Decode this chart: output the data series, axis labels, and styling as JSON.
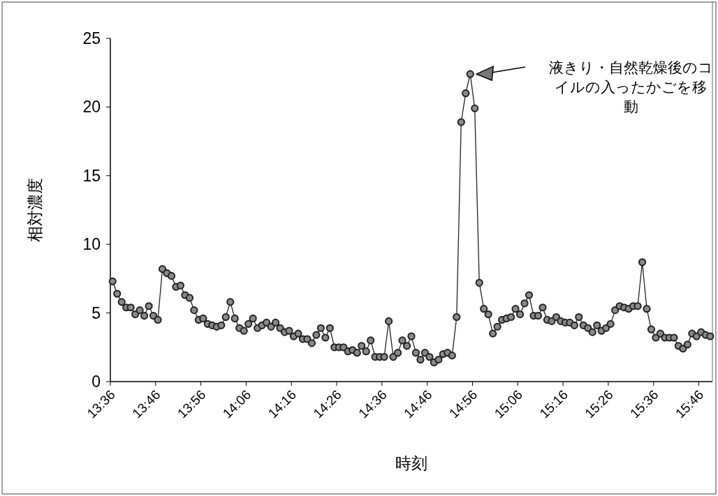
{
  "chart_data": {
    "type": "line",
    "xlabel": "時刻",
    "ylabel": "相対濃度",
    "categories": [
      "13:36",
      null,
      null,
      null,
      null,
      null,
      null,
      null,
      null,
      null,
      "13:46",
      null,
      null,
      null,
      null,
      null,
      null,
      null,
      null,
      null,
      "13:56",
      null,
      null,
      null,
      null,
      null,
      null,
      null,
      null,
      null,
      "14:06",
      null,
      null,
      null,
      null,
      null,
      null,
      null,
      null,
      null,
      "14:16",
      null,
      null,
      null,
      null,
      null,
      null,
      null,
      null,
      null,
      "14:26",
      null,
      null,
      null,
      null,
      null,
      null,
      null,
      null,
      null,
      "14:36",
      null,
      null,
      null,
      null,
      null,
      null,
      null,
      null,
      null,
      "14:46",
      null,
      null,
      null,
      null,
      null,
      null,
      null,
      null,
      null,
      "14:56",
      null,
      null,
      null,
      null,
      null,
      null,
      null,
      null,
      null,
      "15:06",
      null,
      null,
      null,
      null,
      null,
      null,
      null,
      null,
      null,
      "15:16",
      null,
      null,
      null,
      null,
      null,
      null,
      null,
      null,
      null,
      "15:26",
      null,
      null,
      null,
      null,
      null,
      null,
      null,
      null,
      null,
      "15:36",
      null,
      null,
      null,
      null,
      null,
      null,
      null,
      null,
      null,
      "15:46",
      null,
      null
    ],
    "series": [
      {
        "color": "#222222",
        "values": [
          7.3,
          6.4,
          5.8,
          5.4,
          5.4,
          4.9,
          5.2,
          4.8,
          5.5,
          4.8,
          4.5,
          8.2,
          7.9,
          7.7,
          6.9,
          7.0,
          6.3,
          6.1,
          5.2,
          4.5,
          4.6,
          4.2,
          4.1,
          4.0,
          4.1,
          4.7,
          5.8,
          4.6,
          3.9,
          3.7,
          4.2,
          4.6,
          3.9,
          4.1,
          4.3,
          4.0,
          4.3,
          3.9,
          3.6,
          3.7,
          3.3,
          3.5,
          3.1,
          3.1,
          2.8,
          3.4,
          3.9,
          3.2,
          3.9,
          2.5,
          2.5,
          2.5,
          2.2,
          2.3,
          2.1,
          2.6,
          2.2,
          3.0,
          1.8,
          1.8,
          1.8,
          4.4,
          1.8,
          2.1,
          3.0,
          2.6,
          3.3,
          2.1,
          1.6,
          2.1,
          1.8,
          1.4,
          1.6,
          2.0,
          2.1,
          1.9,
          4.7,
          18.9,
          21.0,
          22.4,
          19.9,
          7.2,
          5.3,
          4.9,
          3.5,
          4.0,
          4.5,
          4.6,
          4.7,
          5.3,
          4.9,
          5.7,
          6.3,
          4.8,
          4.8,
          5.4,
          4.5,
          4.4,
          4.7,
          4.4,
          4.3,
          4.3,
          4.1,
          4.7,
          4.1,
          3.9,
          3.6,
          4.1,
          3.7,
          3.9,
          4.2,
          5.2,
          5.5,
          5.4,
          5.3,
          5.5,
          5.5,
          8.7,
          5.3,
          3.8,
          3.2,
          3.5,
          3.2,
          3.2,
          3.2,
          2.6,
          2.4,
          2.7,
          3.5,
          3.3,
          3.6,
          3.4,
          3.3
        ]
      }
    ],
    "ylim": [
      0,
      25
    ],
    "yticks": [
      0,
      5,
      10,
      15,
      20,
      25
    ],
    "grid": false,
    "marker": "circle",
    "line_style": "solid",
    "annotations": [
      "液きり・自然乾燥後のコイルの入ったかごを移動"
    ]
  }
}
